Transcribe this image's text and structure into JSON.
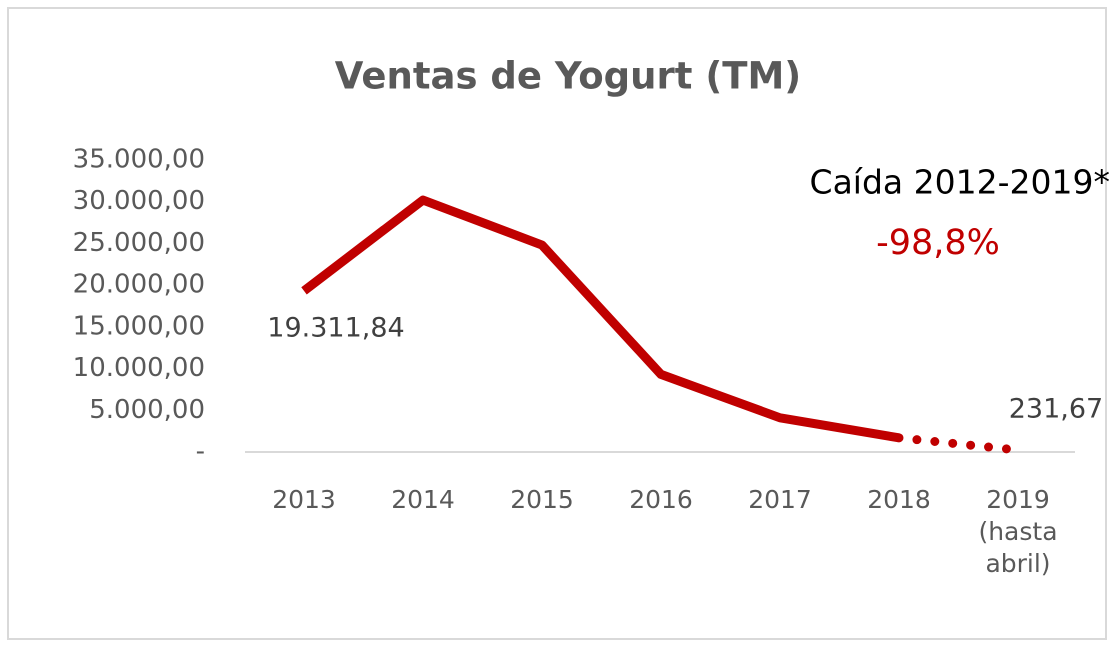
{
  "chart_data": {
    "type": "line",
    "title": "Ventas de Yogurt (TM)",
    "categories": [
      "2013",
      "2014",
      "2015",
      "2016",
      "2017",
      "2018",
      "2019 (hasta abril)"
    ],
    "series": [
      {
        "name": "Ventas",
        "color": "#c00000",
        "values": [
          19311.84,
          30200,
          24800,
          9300,
          4100,
          1700,
          231.67
        ],
        "value_labels": [
          "19.311,84",
          null,
          null,
          null,
          null,
          null,
          "231,67"
        ]
      }
    ],
    "ylim": [
      0,
      35000
    ],
    "yticks": [
      {
        "value": 0,
        "label": "-"
      },
      {
        "value": 5000,
        "label": "5.000,00"
      },
      {
        "value": 10000,
        "label": "10.000,00"
      },
      {
        "value": 15000,
        "label": "15.000,00"
      },
      {
        "value": 20000,
        "label": "20.000,00"
      },
      {
        "value": 25000,
        "label": "25.000,00"
      },
      {
        "value": 30000,
        "label": "30.000,00"
      },
      {
        "value": 35000,
        "label": "35.000,00"
      }
    ],
    "grid": false,
    "annotations": [
      "Caída 2012-2019*",
      "-98,8%"
    ]
  }
}
